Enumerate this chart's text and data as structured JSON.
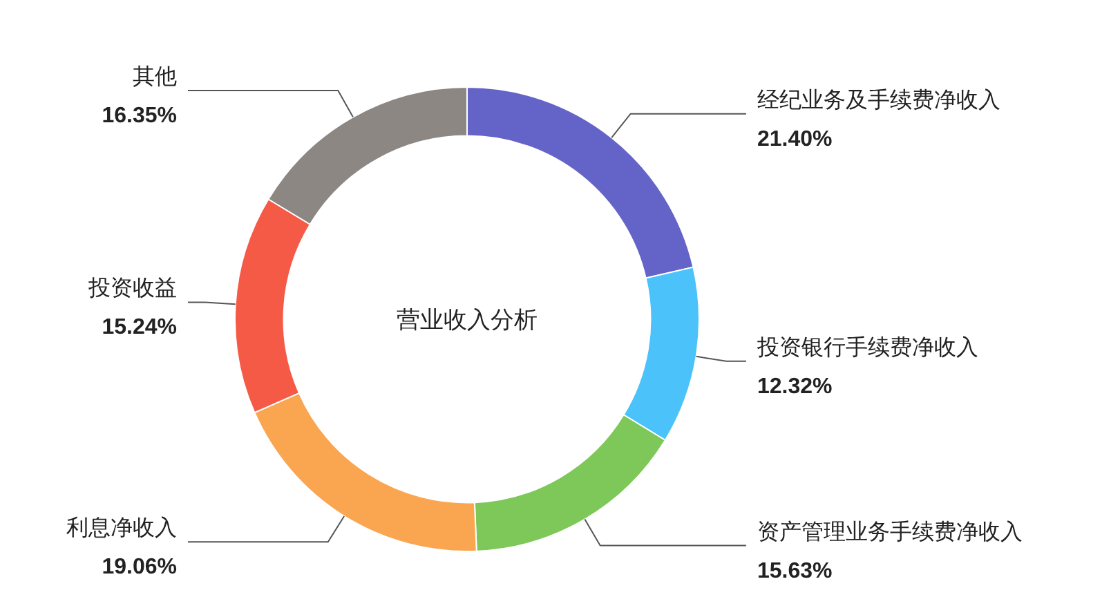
{
  "chart_data": {
    "type": "donut",
    "title": "营业收入分析",
    "categories": [
      "经纪业务及手续费净收入",
      "投资银行手续费净收入",
      "资产管理业务手续费净收入",
      "利息净收入",
      "投资收益",
      "其他"
    ],
    "values": [
      21.4,
      12.32,
      15.63,
      19.06,
      15.24,
      16.35
    ],
    "value_labels": [
      "21.40%",
      "12.32%",
      "15.63%",
      "19.06%",
      "15.24%",
      "16.35%"
    ],
    "colors": [
      "#6464c8",
      "#4bc3fa",
      "#7ec85a",
      "#faa550",
      "#f55a46",
      "#8c8782"
    ]
  }
}
